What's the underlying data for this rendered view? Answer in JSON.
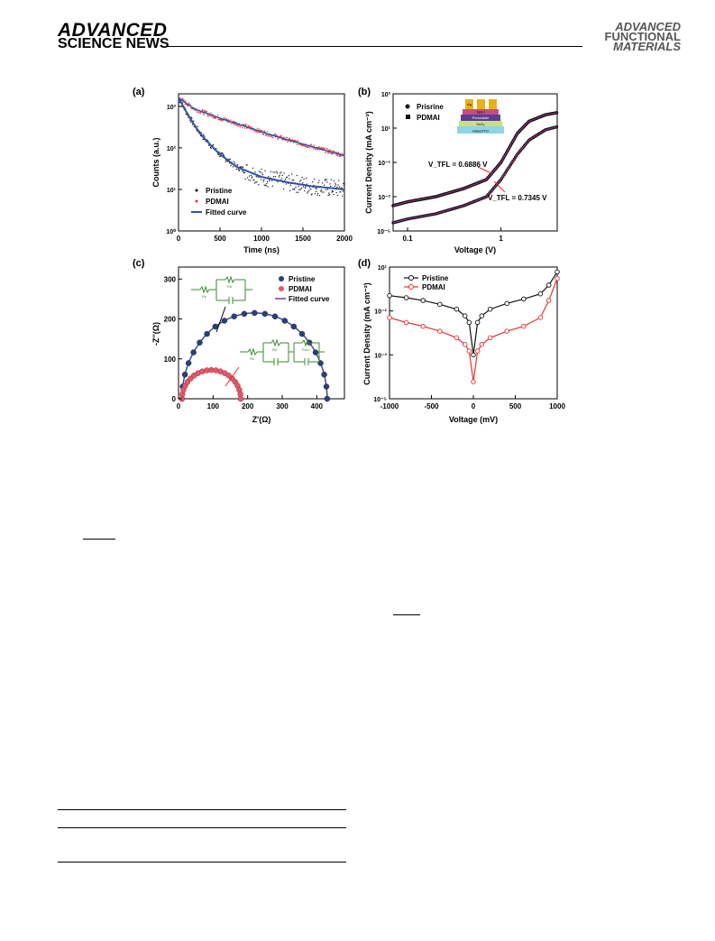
{
  "header": {
    "left_logo_line1": "ADVANCED",
    "left_logo_line2": "SCIENCE NEWS",
    "right_logo_line1": "ADVANCED",
    "right_logo_line2": "FUNCTIONAL",
    "right_logo_line3": "MATERIALS"
  },
  "colors": {
    "pristine": "#111111",
    "pdmai": "#e83030",
    "fit_a": "#2f54a8",
    "fit_c": "#3a4fa0",
    "circuit": "#3c8a2e"
  },
  "chart_data": [
    {
      "panel": "(a)",
      "type": "scatter",
      "xlabel": "Time (ns)",
      "ylabel": "Counts (a.u.)",
      "xlim": [
        0,
        2000
      ],
      "ylim": [
        1,
        2000
      ],
      "yscale": "log",
      "xticks": [
        "0",
        "500",
        "1000",
        "1500",
        "2000"
      ],
      "yticks": [
        "10⁰",
        "10¹",
        "10²",
        "10³"
      ],
      "legend": [
        "Pristine",
        "PDMAI",
        "Fitted curve"
      ],
      "series": [
        {
          "name": "Pristine",
          "x": [
            0,
            100,
            200,
            300,
            400,
            500,
            700,
            1000,
            1300,
            1600,
            2000
          ],
          "values": [
            1600,
            700,
            330,
            180,
            110,
            70,
            35,
            20,
            15,
            12,
            10
          ]
        },
        {
          "name": "PDMAI",
          "x": [
            0,
            200,
            500,
            800,
            1100,
            1400,
            1700,
            2000
          ],
          "values": [
            1600,
            850,
            520,
            330,
            210,
            140,
            95,
            65
          ]
        }
      ]
    },
    {
      "panel": "(b)",
      "type": "scatter",
      "xlabel": "Voltage (V)",
      "ylabel": "Current Density (mA cm⁻²)",
      "xscale": "log",
      "yscale": "log",
      "xlim": [
        0.07,
        4
      ],
      "ylim": [
        1e-05,
        1000
      ],
      "xticks": [
        "0.1",
        "1"
      ],
      "yticks": [
        "10⁻⁵",
        "10⁻³",
        "10⁻¹",
        "10¹",
        "10³"
      ],
      "legend": [
        "Prisrine",
        "PDMAI"
      ],
      "annotations": [
        "V_TFL = 0.6886 V",
        "V_TFL = 0.7345 V"
      ],
      "inset_layers": [
        "Ag",
        "Spiro",
        "Perovskite",
        "SnO₂",
        "Glass/ITO"
      ],
      "series": [
        {
          "name": "Prisrine",
          "x": [
            0.07,
            0.1,
            0.2,
            0.4,
            0.7,
            1,
            1.5,
            2,
            3,
            4
          ],
          "values": [
            0.0003,
            0.0005,
            0.001,
            0.003,
            0.01,
            0.1,
            5,
            25,
            60,
            80
          ]
        },
        {
          "name": "PDMAI",
          "x": [
            0.07,
            0.1,
            0.2,
            0.4,
            0.7,
            1,
            1.5,
            2,
            3,
            4
          ],
          "values": [
            3e-05,
            5e-05,
            0.0001,
            0.0003,
            0.001,
            0.01,
            0.3,
            2,
            8,
            12
          ]
        }
      ]
    },
    {
      "panel": "(c)",
      "type": "scatter",
      "xlabel": "Z'(Ω)",
      "ylabel": "-Z''(Ω)",
      "xlim": [
        0,
        480
      ],
      "ylim": [
        0,
        330
      ],
      "xticks": [
        "0",
        "100",
        "200",
        "300",
        "400"
      ],
      "yticks": [
        "0",
        "100",
        "200",
        "300"
      ],
      "legend": [
        "Pristine",
        "PDMAI",
        "Fitted curve"
      ],
      "circuit_labels": [
        "Rs",
        "Rtr",
        "Rs",
        "Rtr",
        "Rrec"
      ],
      "series": [
        {
          "name": "Pristine",
          "Rs": 10,
          "Rtotal": 430,
          "peak": 215
        },
        {
          "name": "PDMAI",
          "Rs": 10,
          "Rtotal": 180,
          "peak": 72
        }
      ]
    },
    {
      "panel": "(d)",
      "type": "line",
      "xlabel": "Voltage (mV)",
      "ylabel": "Current Density (mA cm⁻²)",
      "yscale": "log",
      "xlim": [
        -1000,
        1000
      ],
      "ylim": [
        1e-05,
        10
      ],
      "xticks": [
        "-1000",
        "-500",
        "0",
        "500",
        "1000"
      ],
      "yticks": [
        "10⁻⁵",
        "10⁻³",
        "10⁻¹",
        "10¹"
      ],
      "legend": [
        "Pristine",
        "PDMAI"
      ],
      "series": [
        {
          "name": "Pristine",
          "x": [
            -1000,
            -800,
            -600,
            -400,
            -200,
            -100,
            -50,
            0,
            50,
            100,
            200,
            400,
            600,
            800,
            900,
            1000
          ],
          "values": [
            0.5,
            0.4,
            0.3,
            0.2,
            0.12,
            0.06,
            0.03,
            0.001,
            0.03,
            0.06,
            0.12,
            0.22,
            0.35,
            0.6,
            1.5,
            6
          ]
        },
        {
          "name": "PDMAI",
          "x": [
            -1000,
            -800,
            -600,
            -400,
            -200,
            -100,
            -50,
            0,
            50,
            100,
            200,
            400,
            600,
            800,
            900,
            1000
          ],
          "values": [
            0.05,
            0.03,
            0.02,
            0.012,
            0.006,
            0.003,
            0.0015,
            6e-05,
            0.0015,
            0.003,
            0.006,
            0.012,
            0.02,
            0.05,
            0.3,
            3
          ]
        }
      ]
    }
  ]
}
